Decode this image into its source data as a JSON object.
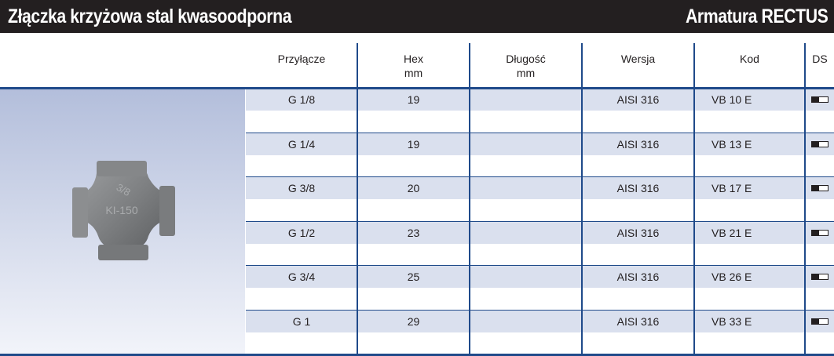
{
  "header": {
    "title": "Złączka krzyżowa stal kwasoodporna",
    "brand": "Armatura RECTUS"
  },
  "columns": [
    {
      "line1": "Przyłącze",
      "line2": ""
    },
    {
      "line1": "Hex",
      "line2": "mm"
    },
    {
      "line1": "Długość",
      "line2": "mm"
    },
    {
      "line1": "Wersja",
      "line2": ""
    },
    {
      "line1": "Kod",
      "line2": ""
    },
    {
      "line1": "DS",
      "line2": ""
    }
  ],
  "rows": [
    {
      "przylacze": "G 1/8",
      "hex": "19",
      "dlugosc": "",
      "wersja": "AISI 316",
      "kod": "VB 10 E",
      "ds": "half"
    },
    {
      "przylacze": "G 1/4",
      "hex": "19",
      "dlugosc": "",
      "wersja": "AISI 316",
      "kod": "VB 13 E",
      "ds": "half"
    },
    {
      "przylacze": "G 3/8",
      "hex": "20",
      "dlugosc": "",
      "wersja": "AISI 316",
      "kod": "VB 17 E",
      "ds": "half"
    },
    {
      "przylacze": "G 1/2",
      "hex": "23",
      "dlugosc": "",
      "wersja": "AISI 316",
      "kod": "VB 21 E",
      "ds": "half"
    },
    {
      "przylacze": "G 3/4",
      "hex": "25",
      "dlugosc": "",
      "wersja": "AISI 316",
      "kod": "VB 26 E",
      "ds": "half"
    },
    {
      "przylacze": "G 1",
      "hex": "29",
      "dlugosc": "",
      "wersja": "AISI 316",
      "kod": "VB 33 E",
      "ds": "half"
    }
  ],
  "product_marking": {
    "size": "3/8",
    "code": "KI-150"
  },
  "colors": {
    "rule": "#1f4a8a",
    "band": "#dae0ee",
    "header_bg": "#231f20"
  }
}
